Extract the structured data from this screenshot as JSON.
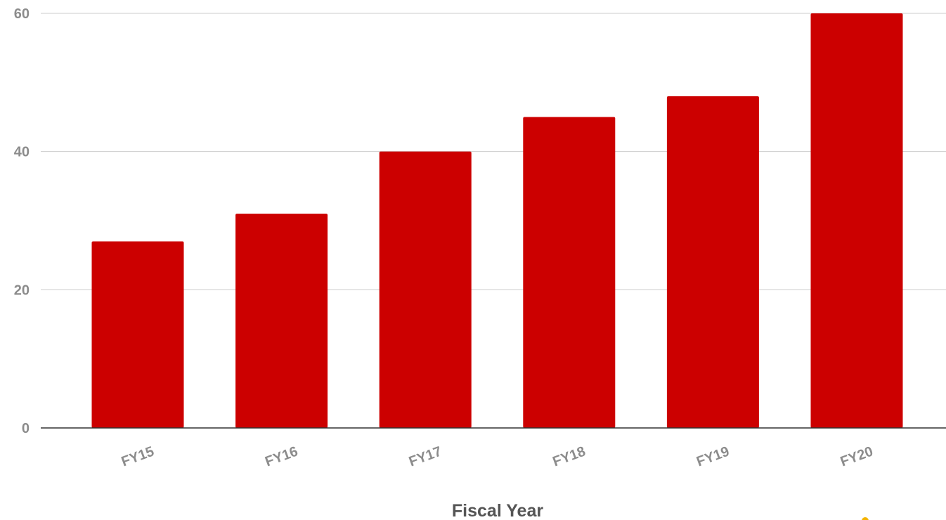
{
  "chart_data": {
    "type": "bar",
    "categories": [
      "FY15",
      "FY16",
      "FY17",
      "FY18",
      "FY19",
      "FY20"
    ],
    "values": [
      27,
      31,
      40,
      45,
      48,
      60
    ],
    "title": "",
    "xlabel": "Fiscal Year",
    "ylabel": "",
    "ylim": [
      0,
      60
    ],
    "yticks": [
      0,
      20,
      40,
      60
    ],
    "grid": true,
    "legend": "none"
  },
  "colors": {
    "bar": "#cc0000",
    "grid": "#cccccc",
    "axis": "#333333",
    "tick_text": "#8c8c8c",
    "label_text": "#555555",
    "marker": "#f4b400"
  }
}
